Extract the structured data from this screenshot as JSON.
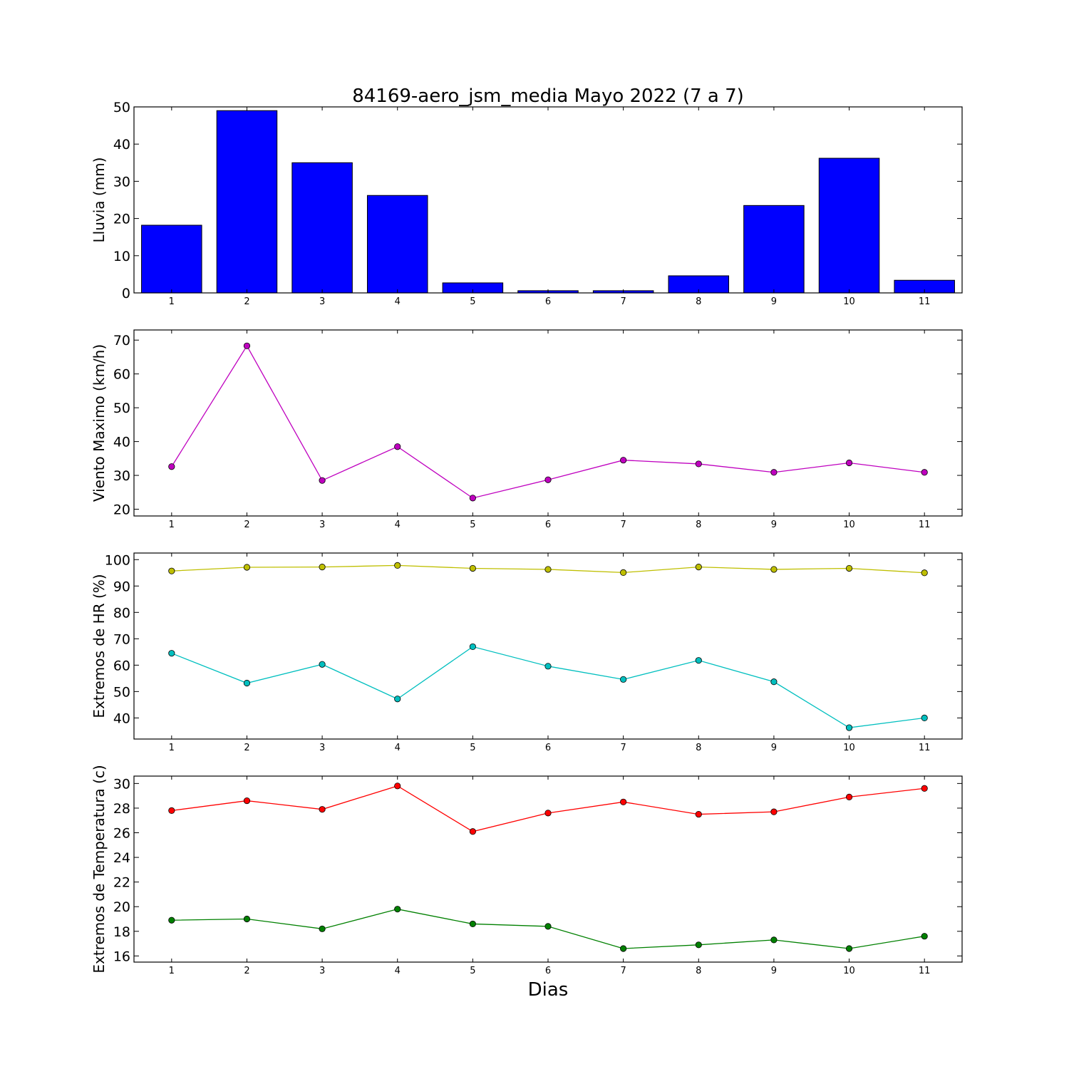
{
  "title": "84169-aero_jsm_media Mayo 2022  (7 a 7)",
  "xlabel": "Dias",
  "chart_data": [
    {
      "type": "bar",
      "ylabel": "Lluvia (mm)",
      "x": [
        1,
        2,
        3,
        4,
        5,
        6,
        7,
        8,
        9,
        10,
        11
      ],
      "ylim": [
        0,
        50
      ],
      "yticks": [
        0,
        10,
        20,
        30,
        40,
        50
      ],
      "series": [
        {
          "values": [
            18.2,
            49.0,
            35.0,
            26.2,
            2.7,
            0.6,
            0.6,
            4.6,
            23.5,
            36.2,
            3.4
          ],
          "color": "#0000ff"
        }
      ]
    },
    {
      "type": "line",
      "ylabel": "Viento Maximo (km/h)",
      "x": [
        1,
        2,
        3,
        4,
        5,
        6,
        7,
        8,
        9,
        10,
        11
      ],
      "ylim": [
        18,
        73
      ],
      "yticks": [
        20,
        30,
        40,
        50,
        60,
        70
      ],
      "series": [
        {
          "values": [
            32.6,
            68.3,
            28.5,
            38.5,
            23.3,
            28.7,
            34.5,
            33.4,
            30.9,
            33.7,
            30.9
          ],
          "color": "#bf00bf"
        }
      ]
    },
    {
      "type": "line",
      "ylabel": "Extremos de HR (%)",
      "x": [
        1,
        2,
        3,
        4,
        5,
        6,
        7,
        8,
        9,
        10,
        11
      ],
      "ylim": [
        32,
        102.5
      ],
      "yticks": [
        40,
        50,
        60,
        70,
        80,
        90,
        100
      ],
      "series": [
        {
          "values": [
            95.7,
            97.1,
            97.2,
            97.8,
            96.7,
            96.3,
            95.1,
            97.2,
            96.3,
            96.7,
            95.0
          ],
          "color": "#bfbf00"
        },
        {
          "values": [
            64.5,
            53.2,
            60.3,
            47.2,
            67.0,
            59.6,
            54.6,
            61.8,
            53.7,
            36.3,
            40.0
          ],
          "color": "#00bfbf"
        }
      ]
    },
    {
      "type": "line",
      "ylabel": "Extremos de Temperatura (c)",
      "x": [
        1,
        2,
        3,
        4,
        5,
        6,
        7,
        8,
        9,
        10,
        11
      ],
      "ylim": [
        15.5,
        30.6
      ],
      "yticks": [
        16,
        18,
        20,
        22,
        24,
        26,
        28,
        30
      ],
      "series": [
        {
          "values": [
            27.8,
            28.6,
            27.9,
            29.8,
            26.1,
            27.6,
            28.5,
            27.5,
            27.7,
            28.9,
            29.6
          ],
          "color": "#ff0000"
        },
        {
          "values": [
            18.9,
            19.0,
            18.2,
            19.8,
            18.6,
            18.4,
            16.6,
            16.9,
            17.3,
            16.6,
            17.6
          ],
          "color": "#008000"
        }
      ]
    }
  ]
}
